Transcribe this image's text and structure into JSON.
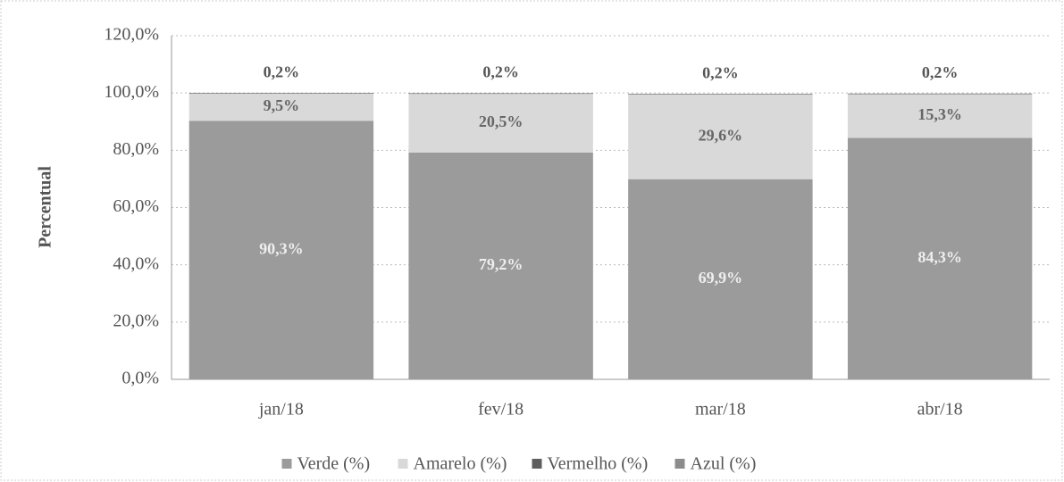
{
  "chart_data": {
    "type": "stacked_bar",
    "y_axis_label": "Percentual",
    "categories": [
      "jan/18",
      "fev/18",
      "mar/18",
      "abr/18"
    ],
    "series": [
      {
        "name": "Verde (%)",
        "color": "#9b9b9b",
        "values": [
          90.3,
          79.2,
          69.9,
          84.3
        ],
        "value_labels": [
          "90,3%",
          "79,2%",
          "69,9%",
          "84,3%"
        ]
      },
      {
        "name": "Amarelo (%)",
        "color": "#d9d9d9",
        "values": [
          9.5,
          20.5,
          29.6,
          15.3
        ],
        "value_labels": [
          "9,5%",
          "20,5%",
          "29,6%",
          "15,3%"
        ]
      },
      {
        "name": "Vermelho (%)",
        "color": "#5e5e5e",
        "values": [
          0.2,
          0.2,
          0.2,
          0.2
        ],
        "value_labels": [
          "0,2%",
          "0,2%",
          "0,2%",
          "0,2%"
        ]
      },
      {
        "name": "Azul (%)",
        "color": "#8c8c8c",
        "values": [
          0,
          0,
          0,
          0
        ]
      }
    ],
    "ylim": [
      0,
      120
    ],
    "yticks": [
      {
        "value": 0,
        "label": "0,0%"
      },
      {
        "value": 20,
        "label": "20,0%"
      },
      {
        "value": 40,
        "label": "40,0%"
      },
      {
        "value": 60,
        "label": "60,0%"
      },
      {
        "value": 80,
        "label": "80,0%"
      },
      {
        "value": 100,
        "label": "100,0%"
      },
      {
        "value": 120,
        "label": "120,0%"
      }
    ],
    "grid": true
  }
}
